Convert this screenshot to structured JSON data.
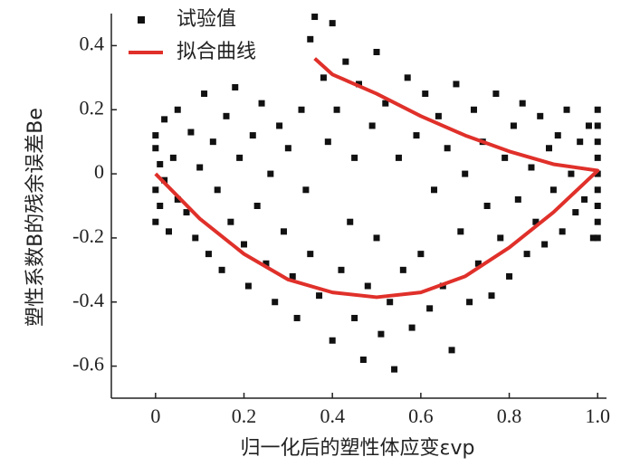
{
  "chart_data": {
    "type": "scatter",
    "x_label": "归一化后的塑性体应变εvp",
    "y_label": "塑性系数B的残余误差Be",
    "xlim": [
      -0.1,
      1.02
    ],
    "ylim": [
      -0.7,
      0.5
    ],
    "xticks": [
      0,
      0.2,
      0.4,
      0.6,
      0.8,
      {
        "value": 1,
        "label": "1.0"
      }
    ],
    "yticks": [
      0.4,
      0.2,
      0,
      -0.2,
      -0.4,
      -0.6
    ],
    "legend": "upper left",
    "series": [
      {
        "name": "试验值",
        "kind": "scatter",
        "color": "#111111",
        "x": [
          0,
          0,
          0,
          0,
          0.01,
          0.01,
          0.02,
          0.02,
          0.03,
          0.04,
          0.05,
          0.05,
          0.07,
          0.08,
          0.09,
          0.1,
          0.11,
          0.12,
          0.13,
          0.14,
          0.15,
          0.16,
          0.17,
          0.18,
          0.19,
          0.2,
          0.21,
          0.22,
          0.23,
          0.24,
          0.25,
          0.26,
          0.27,
          0.28,
          0.29,
          0.3,
          0.31,
          0.32,
          0.33,
          0.34,
          0.35,
          0.35,
          0.36,
          0.37,
          0.38,
          0.39,
          0.4,
          0.4,
          0.41,
          0.42,
          0.43,
          0.44,
          0.45,
          0.45,
          0.46,
          0.47,
          0.48,
          0.49,
          0.5,
          0.5,
          0.51,
          0.52,
          0.53,
          0.54,
          0.55,
          0.56,
          0.57,
          0.58,
          0.59,
          0.6,
          0.61,
          0.62,
          0.63,
          0.64,
          0.65,
          0.66,
          0.67,
          0.68,
          0.69,
          0.7,
          0.71,
          0.72,
          0.73,
          0.74,
          0.75,
          0.76,
          0.77,
          0.78,
          0.79,
          0.8,
          0.81,
          0.82,
          0.83,
          0.84,
          0.85,
          0.86,
          0.87,
          0.88,
          0.89,
          0.9,
          0.91,
          0.92,
          0.93,
          0.94,
          0.95,
          0.96,
          0.97,
          0.98,
          0.99,
          1,
          1,
          1,
          1,
          1,
          1,
          1,
          1,
          1
        ],
        "values": [
          0.08,
          -0.05,
          -0.15,
          0.12,
          0.03,
          -0.1,
          0.17,
          -0.02,
          -0.18,
          0.05,
          0.2,
          -0.08,
          -0.12,
          0.13,
          -0.2,
          0.02,
          0.25,
          -0.25,
          0.1,
          -0.05,
          -0.3,
          0.18,
          -0.15,
          0.27,
          0.05,
          -0.22,
          -0.35,
          0.12,
          -0.1,
          0.22,
          -0.28,
          0,
          -0.4,
          0.15,
          -0.18,
          0.08,
          -0.32,
          -0.45,
          0.2,
          -0.05,
          -0.25,
          0.42,
          0.49,
          -0.38,
          0.3,
          0.1,
          -0.52,
          0.47,
          0.2,
          -0.3,
          0.35,
          -0.15,
          0.05,
          -0.45,
          0.28,
          -0.58,
          -0.35,
          0.15,
          -0.2,
          0.38,
          -0.5,
          0.22,
          -0.4,
          -0.61,
          0.05,
          -0.3,
          0.3,
          -0.48,
          0.12,
          -0.25,
          0.25,
          -0.42,
          -0.05,
          0.18,
          -0.35,
          0.08,
          -0.55,
          0.28,
          -0.18,
          0,
          -0.4,
          0.2,
          -0.28,
          0.1,
          -0.1,
          -0.38,
          0.25,
          -0.2,
          0.05,
          -0.32,
          0.15,
          -0.08,
          0.22,
          -0.25,
          0.02,
          -0.15,
          0.18,
          -0.22,
          0.08,
          -0.05,
          0.12,
          -0.18,
          0.2,
          0,
          -0.12,
          0.1,
          -0.08,
          0.15,
          -0.2,
          0.2,
          0.1,
          0,
          -0.1,
          -0.2,
          0.05,
          -0.05,
          0.15,
          -0.15
        ]
      },
      {
        "name": "拟合曲线",
        "kind": "line",
        "color": "#e0302a",
        "x": [
          0,
          0.1,
          0.2,
          0.3,
          0.4,
          0.5,
          0.6,
          0.7,
          0.8,
          0.9,
          1,
          0.9,
          0.8,
          0.7,
          0.6,
          0.5,
          0.4,
          0.36
        ],
        "values": [
          0,
          -0.14,
          -0.25,
          -0.33,
          -0.37,
          -0.385,
          -0.37,
          -0.32,
          -0.23,
          -0.12,
          0.01,
          0.03,
          0.07,
          0.12,
          0.18,
          0.25,
          0.31,
          0.36
        ]
      }
    ]
  }
}
